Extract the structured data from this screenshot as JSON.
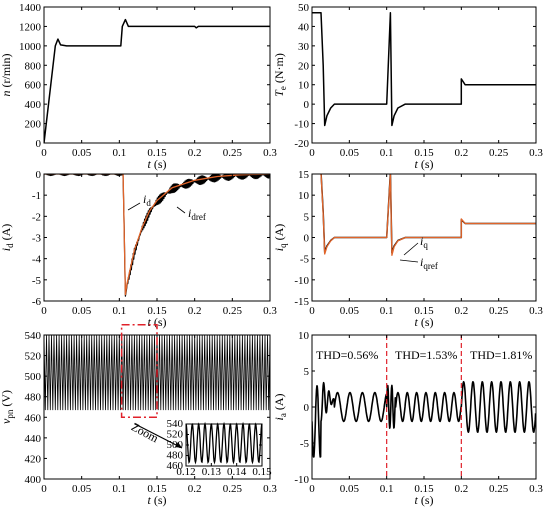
{
  "chart_data": [
    {
      "type": "line",
      "panel": "a",
      "xlabel": "t (s)",
      "ylabel": "n (r/min)",
      "xlim": [
        0,
        0.3
      ],
      "ylim": [
        0,
        1400
      ],
      "xticks": [
        "0",
        "0.05",
        "0.1",
        "0.15",
        "0.2",
        "0.25",
        "0.3"
      ],
      "yticks": [
        "0",
        "200",
        "400",
        "600",
        "800",
        "1000",
        "1200",
        "1400"
      ],
      "series": [
        {
          "color": "#000000",
          "x": [
            0,
            0.015,
            0.0185,
            0.022,
            0.03,
            0.1,
            0.102,
            0.104,
            0.108,
            0.112,
            0.2,
            0.202,
            0.205,
            0.3
          ],
          "y": [
            0,
            1000,
            1070,
            1010,
            1000,
            1000,
            1000,
            1200,
            1270,
            1200,
            1200,
            1185,
            1200,
            1200
          ]
        }
      ]
    },
    {
      "type": "line",
      "panel": "b",
      "xlabel": "t (s)",
      "ylabel": "Te (N·m)",
      "xlim": [
        0,
        0.3
      ],
      "ylim": [
        -20,
        50
      ],
      "xticks": [
        "0",
        "0.05",
        "0.1",
        "0.15",
        "0.2",
        "0.25",
        "0.3"
      ],
      "yticks": [
        "-20",
        "-10",
        "0",
        "10",
        "20",
        "30",
        "40",
        "50"
      ],
      "series": [
        {
          "color": "#000000",
          "x": [
            0,
            0.012,
            0.015,
            0.017,
            0.02,
            0.025,
            0.03,
            0.04,
            0.1,
            0.105,
            0.107,
            0.11,
            0.115,
            0.125,
            0.2,
            0.2,
            0.205,
            0.21,
            0.3
          ],
          "y": [
            47,
            47,
            20,
            -11,
            -6,
            -2,
            0,
            0,
            0,
            47,
            -11,
            -6,
            -2,
            0,
            0,
            13,
            10,
            10,
            10
          ]
        }
      ]
    },
    {
      "type": "line",
      "panel": "c",
      "xlabel": "t (s)",
      "ylabel": "id (A)",
      "xlim": [
        0,
        0.3
      ],
      "ylim": [
        -6,
        0
      ],
      "xticks": [
        "0",
        "0.05",
        "0.1",
        "0.15",
        "0.2",
        "0.25",
        "0.3"
      ],
      "yticks": [
        "-6",
        "-5",
        "-4",
        "-3",
        "-2",
        "-1",
        "0"
      ],
      "annotations": [
        "id",
        "idref"
      ],
      "series": [
        {
          "name": "id",
          "color": "#000000",
          "style": "noisy",
          "x": [
            0,
            0.105,
            0.108,
            0.11,
            0.12,
            0.13,
            0.14,
            0.15,
            0.17,
            0.2,
            0.23,
            0.26,
            0.3
          ],
          "y": [
            0.05,
            0.05,
            -5.8,
            -5.3,
            -3.7,
            -2.6,
            -1.8,
            -1.3,
            -0.7,
            -0.35,
            -0.15,
            -0.05,
            0
          ]
        },
        {
          "name": "idref",
          "color": "#e0642a",
          "style": "smooth",
          "x": [
            0,
            0.105,
            0.108,
            0.11,
            0.12,
            0.13,
            0.14,
            0.15,
            0.17,
            0.2,
            0.23,
            0.26,
            0.3
          ],
          "y": [
            0,
            0,
            -5.7,
            -5.2,
            -3.6,
            -2.55,
            -1.75,
            -1.25,
            -0.65,
            -0.3,
            -0.12,
            -0.04,
            0
          ]
        }
      ]
    },
    {
      "type": "line",
      "panel": "d",
      "xlabel": "t (s)",
      "ylabel": "iq (A)",
      "xlim": [
        0,
        0.3
      ],
      "ylim": [
        -15,
        15
      ],
      "xticks": [
        "0",
        "0.05",
        "0.1",
        "0.15",
        "0.2",
        "0.25",
        "0.3"
      ],
      "yticks": [
        "-15",
        "-10",
        "-5",
        "0",
        "5",
        "10",
        "15"
      ],
      "annotations": [
        "iq",
        "iqref"
      ],
      "series": [
        {
          "name": "iq",
          "color": "#000000",
          "x": [
            0,
            0.012,
            0.015,
            0.017,
            0.02,
            0.025,
            0.03,
            0.04,
            0.1,
            0.105,
            0.107,
            0.11,
            0.115,
            0.125,
            0.2,
            0.2,
            0.205,
            0.21,
            0.3
          ],
          "y": [
            15.5,
            15.5,
            6,
            -3.6,
            -2,
            -0.7,
            0,
            0,
            0,
            15.5,
            -3.6,
            -2,
            -0.7,
            0,
            0,
            4.2,
            3.3,
            3.3,
            3.3
          ]
        },
        {
          "name": "iqref",
          "color": "#e0642a",
          "x": [
            0,
            0.012,
            0.015,
            0.017,
            0.02,
            0.025,
            0.03,
            0.04,
            0.1,
            0.105,
            0.107,
            0.11,
            0.115,
            0.125,
            0.2,
            0.2,
            0.205,
            0.21,
            0.3
          ],
          "y": [
            15.2,
            15.2,
            5.5,
            -3.9,
            -2.2,
            -0.8,
            0,
            0,
            0,
            15,
            -4.2,
            -2.2,
            -0.8,
            0,
            0,
            4.4,
            3.3,
            3.3,
            3.3
          ]
        }
      ]
    },
    {
      "type": "line",
      "panel": "e",
      "xlabel": "t (s)",
      "ylabel": "vpn (V)",
      "xlim": [
        0,
        0.3
      ],
      "ylim": [
        400,
        540
      ],
      "xticks": [
        "0",
        "0.05",
        "0.1",
        "0.15",
        "0.2",
        "0.25",
        "0.3"
      ],
      "yticks": [
        "400",
        "420",
        "440",
        "460",
        "480",
        "500",
        "520",
        "540"
      ],
      "ripple": {
        "low": 467,
        "high": 540,
        "period": 0.003333
      },
      "annotations": [
        "Zoom"
      ],
      "zoom_box": {
        "xlim": [
          0.103,
          0.15
        ],
        "ylim": [
          460,
          550
        ]
      },
      "inset": {
        "xlim": [
          0.11,
          0.15
        ],
        "ylim": [
          460,
          540
        ],
        "xticks": [
          "0.12",
          "0.13",
          "0.14",
          "0.15"
        ],
        "yticks": [
          "460",
          "480",
          "500",
          "520",
          "540"
        ],
        "ripple": {
          "low": 467,
          "high": 540,
          "period": 0.003333
        }
      }
    },
    {
      "type": "line",
      "panel": "f",
      "xlabel": "t (s)",
      "ylabel": "ia (A)",
      "xlim": [
        0,
        0.3
      ],
      "ylim": [
        -10,
        10
      ],
      "xticks": [
        "0",
        "0.05",
        "0.1",
        "0.15",
        "0.2",
        "0.25",
        "0.3"
      ],
      "yticks": [
        "-10",
        "-5",
        "0",
        "5",
        "10"
      ],
      "annotations": [
        "THD=0.56%",
        "THD=1.53%",
        "THD=1.81%"
      ],
      "markers": [
        0.1,
        0.2
      ],
      "segments": [
        {
          "t0": 0.03,
          "t1": 0.1,
          "amp": 2,
          "freq": 60
        },
        {
          "t0": 0.112,
          "t1": 0.2,
          "amp": 2,
          "freq": 80
        },
        {
          "t0": 0.2,
          "t1": 0.3,
          "amp": 3.5,
          "freq": 80
        }
      ]
    }
  ]
}
